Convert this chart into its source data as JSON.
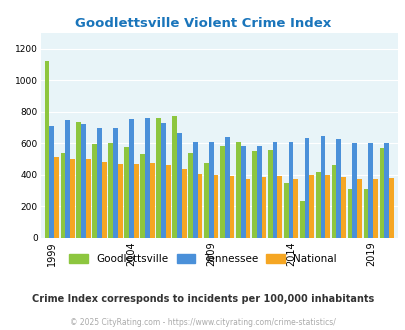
{
  "title": "Goodlettsville Violent Crime Index",
  "years": [
    1999,
    2000,
    2001,
    2002,
    2003,
    2004,
    2005,
    2006,
    2007,
    2008,
    2009,
    2010,
    2011,
    2012,
    2013,
    2014,
    2015,
    2016,
    2017,
    2018,
    2019,
    2020
  ],
  "goodlettsville": [
    1125,
    535,
    735,
    595,
    600,
    575,
    530,
    760,
    775,
    540,
    475,
    585,
    610,
    550,
    555,
    350,
    235,
    415,
    460,
    310,
    310,
    570
  ],
  "tennessee": [
    710,
    750,
    720,
    695,
    695,
    755,
    760,
    730,
    665,
    610,
    605,
    640,
    585,
    580,
    610,
    610,
    635,
    645,
    625,
    600,
    600,
    600
  ],
  "national": [
    510,
    500,
    500,
    480,
    465,
    465,
    475,
    460,
    435,
    405,
    395,
    390,
    375,
    385,
    390,
    370,
    395,
    400,
    385,
    375,
    375,
    380
  ],
  "goodlettsville_color": "#8dc63f",
  "tennessee_color": "#4a90d9",
  "national_color": "#f5a623",
  "bg_color": "#e8f4f8",
  "title_color": "#1a75bb",
  "ylim": [
    0,
    1300
  ],
  "yticks": [
    0,
    200,
    400,
    600,
    800,
    1000,
    1200
  ],
  "xlabel_years": [
    1999,
    2004,
    2009,
    2014,
    2019
  ],
  "note_text": "Crime Index corresponds to incidents per 100,000 inhabitants",
  "copyright_text": "© 2025 CityRating.com - https://www.cityrating.com/crime-statistics/",
  "note_color": "#333333",
  "copyright_color": "#aaaaaa",
  "legend_labels": [
    "Goodlettsville",
    "Tennessee",
    "National"
  ]
}
